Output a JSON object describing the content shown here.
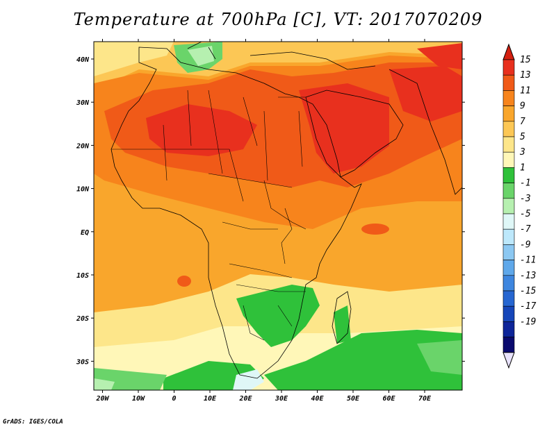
{
  "title": "Temperature at 700hPa [C], VT: 2017070209",
  "credit": "GrADS: IGES/COLA",
  "lon_labels": [
    "20W",
    "10W",
    "0",
    "10E",
    "20E",
    "30E",
    "40E",
    "50E",
    "60E",
    "70E"
  ],
  "lat_labels": [
    "40N",
    "30N",
    "20N",
    "10N",
    "EQ",
    "10S",
    "20S",
    "30S"
  ],
  "colorbar": {
    "labels": [
      "15",
      "13",
      "11",
      "9",
      "7",
      "5",
      "3",
      "1",
      "-1",
      "-3",
      "-5",
      "-7",
      "-9",
      "-11",
      "-13",
      "-15",
      "-17",
      "-19"
    ],
    "colors": [
      "#e8301e",
      "#f05a18",
      "#f7841c",
      "#f9a62c",
      "#fcc755",
      "#fde68a",
      "#fff7b8",
      "#2fc13a",
      "#6ad46a",
      "#b6f0b0",
      "#dff7f7",
      "#bde8fb",
      "#8cc8f2",
      "#5fa8ea",
      "#3e86df",
      "#2666d1",
      "#1646b9",
      "#0e2599",
      "#0a0a6e"
    ],
    "top_color": "#d42010",
    "bottom_color": "#e8e2fb"
  },
  "map": {
    "region": "Africa and Middle East",
    "lon_range": [
      -22,
      80
    ],
    "lat_range": [
      -36,
      45
    ]
  }
}
